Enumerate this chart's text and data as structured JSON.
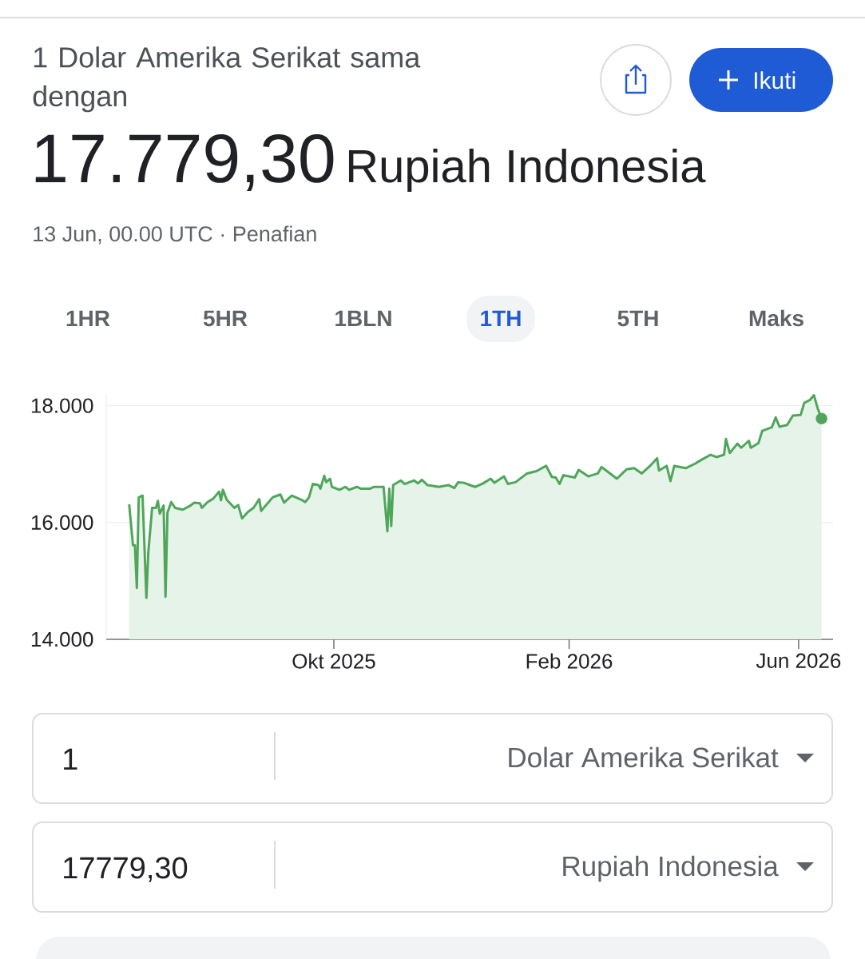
{
  "chart_data": {
    "type": "area",
    "title": "1 Dolar Amerika Serikat sama dengan",
    "subtitle": "17.779,30",
    "annotations": [
      "Rupiah Indonesia",
      "13 Jun, 00.00 UTC · Penafian",
      "1HR",
      "5HR",
      "1BLN",
      "1TH",
      "5TH",
      "Maks",
      "Ikuti",
      "1",
      "Dolar Amerika Serikat",
      "17779,30",
      "Rupiah Indonesia"
    ],
    "xlim": [
      "2025-06-04",
      "2026-06-19"
    ],
    "ylim": [
      14000,
      18200
    ],
    "xticks": [
      {
        "value": "2025-10-01",
        "label": "Okt 2025"
      },
      {
        "value": "2026-02-01",
        "label": "Feb 2026"
      },
      {
        "value": "2026-06-01",
        "label": "Jun 2026"
      }
    ],
    "yticks": [
      {
        "value": 14000,
        "label": "14.000"
      },
      {
        "value": 16000,
        "label": "16.000"
      },
      {
        "value": 18000,
        "label": "18.000"
      }
    ],
    "grid": "y",
    "series": [
      {
        "color": "#4fa65b",
        "x": [
          "2025-06-16",
          "2025-06-18",
          "2025-06-19",
          "2025-06-20",
          "2025-06-21",
          "2025-06-23",
          "2025-06-25",
          "2025-06-26",
          "2025-06-28",
          "2025-06-30",
          "2025-07-01",
          "2025-07-02",
          "2025-07-04",
          "2025-07-05",
          "2025-07-06",
          "2025-07-08",
          "2025-07-10",
          "2025-07-14",
          "2025-07-18",
          "2025-07-20",
          "2025-07-23",
          "2025-07-24",
          "2025-07-27",
          "2025-07-30",
          "2025-08-02",
          "2025-08-03",
          "2025-08-04",
          "2025-08-06",
          "2025-08-10",
          "2025-08-12",
          "2025-08-14",
          "2025-08-17",
          "2025-08-20",
          "2025-08-23",
          "2025-08-24",
          "2025-08-30",
          "2025-09-03",
          "2025-09-05",
          "2025-09-09",
          "2025-09-14",
          "2025-09-16",
          "2025-09-18",
          "2025-09-20",
          "2025-09-23",
          "2025-09-24",
          "2025-09-26",
          "2025-09-27",
          "2025-09-29",
          "2025-09-30",
          "2025-10-04",
          "2025-10-07",
          "2025-10-09",
          "2025-10-13",
          "2025-10-15",
          "2025-10-20",
          "2025-10-22",
          "2025-10-27",
          "2025-10-29",
          "2025-10-30",
          "2025-10-31",
          "2025-11-01",
          "2025-11-05",
          "2025-11-07",
          "2025-11-12",
          "2025-11-14",
          "2025-11-16",
          "2025-11-19",
          "2025-11-25",
          "2025-11-30",
          "2025-12-03",
          "2025-12-05",
          "2025-12-08",
          "2025-12-12",
          "2025-12-14",
          "2025-12-18",
          "2025-12-22",
          "2025-12-24",
          "2025-12-29",
          "2025-12-31",
          "2026-01-04",
          "2026-01-10",
          "2026-01-15",
          "2026-01-20",
          "2026-01-23",
          "2026-01-25",
          "2026-01-27",
          "2026-01-29",
          "2026-02-04",
          "2026-02-06",
          "2026-02-11",
          "2026-02-16",
          "2026-02-18",
          "2026-02-22",
          "2026-02-26",
          "2026-03-03",
          "2026-03-07",
          "2026-03-11",
          "2026-03-15",
          "2026-03-19",
          "2026-03-20",
          "2026-03-24",
          "2026-03-26",
          "2026-03-28",
          "2026-04-03",
          "2026-04-08",
          "2026-04-11",
          "2026-04-16",
          "2026-04-19",
          "2026-04-23",
          "2026-04-24",
          "2026-04-26",
          "2026-04-30",
          "2026-05-02",
          "2026-05-06",
          "2026-05-07",
          "2026-05-11",
          "2026-05-13",
          "2026-05-18",
          "2026-05-20",
          "2026-05-22",
          "2026-05-26",
          "2026-05-29",
          "2026-06-02",
          "2026-06-04",
          "2026-06-07",
          "2026-06-09",
          "2026-06-11",
          "2026-06-13"
        ],
        "values": [
          16310,
          15610,
          15610,
          14880,
          16430,
          16460,
          14710,
          15490,
          16250,
          16250,
          16370,
          16150,
          16290,
          14730,
          16170,
          16350,
          16250,
          16220,
          16290,
          16340,
          16330,
          16250,
          16350,
          16410,
          16530,
          16380,
          16560,
          16390,
          16250,
          16300,
          16070,
          16180,
          16250,
          16400,
          16200,
          16430,
          16480,
          16340,
          16460,
          16390,
          16350,
          16430,
          16660,
          16640,
          16580,
          16800,
          16690,
          16750,
          16610,
          16560,
          16610,
          16560,
          16610,
          16580,
          16580,
          16610,
          16610,
          15850,
          16580,
          15940,
          16640,
          16720,
          16660,
          16720,
          16670,
          16730,
          16640,
          16610,
          16640,
          16590,
          16690,
          16680,
          16630,
          16610,
          16670,
          16750,
          16680,
          16790,
          16660,
          16690,
          16840,
          16880,
          16970,
          16780,
          16770,
          16660,
          16810,
          16770,
          16900,
          16790,
          16840,
          16950,
          16850,
          16750,
          16910,
          16930,
          16840,
          16960,
          17100,
          16890,
          16970,
          16710,
          16970,
          16930,
          17010,
          17070,
          17160,
          17120,
          17160,
          17430,
          17190,
          17350,
          17280,
          17400,
          17280,
          17360,
          17570,
          17630,
          17800,
          17640,
          17670,
          17830,
          17840,
          18050,
          18100,
          18180,
          17950,
          17780
        ]
      },
      {
        "type": "scatter",
        "color": "#4fa65b",
        "marker": "circle",
        "x": [
          "2026-06-13"
        ],
        "values": [
          17780
        ]
      }
    ]
  }
}
